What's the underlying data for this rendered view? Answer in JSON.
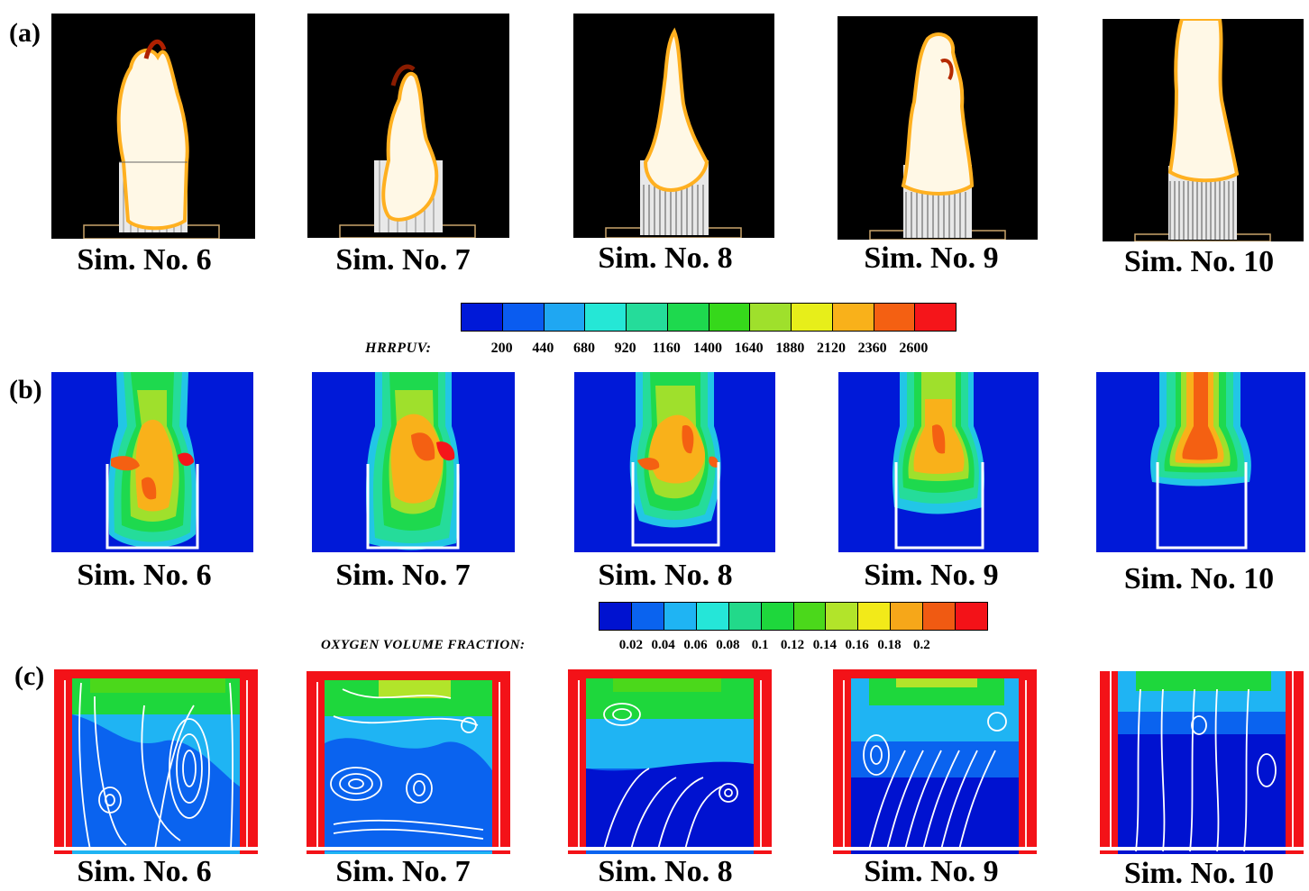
{
  "panels": {
    "a": {
      "letter": "(a)"
    },
    "b": {
      "letter": "(b)"
    },
    "c": {
      "letter": "(c)"
    }
  },
  "simulations": [
    "Sim. No. 6",
    "Sim. No. 7",
    "Sim. No. 8",
    "Sim. No. 9",
    "Sim. No. 10"
  ],
  "hrr_colorbar": {
    "title": "HRRPUV:",
    "ticks": [
      "200",
      "440",
      "680",
      "920",
      "1160",
      "1400",
      "1640",
      "1880",
      "2120",
      "2360",
      "2600"
    ],
    "colors": [
      "#0019d8",
      "#0a5cf0",
      "#1fa7f2",
      "#25e7d6",
      "#25dc9a",
      "#1ed94e",
      "#36d81b",
      "#9fe02c",
      "#e7ee1a",
      "#f9b11a",
      "#f46012",
      "#f5151a"
    ]
  },
  "o2_colorbar": {
    "title": "OXYGEN VOLUME FRACTION:",
    "ticks": [
      "0.02",
      "0.04",
      "0.06",
      "0.08",
      "0.1",
      "0.12",
      "0.14",
      "0.16",
      "0.18",
      "0.2"
    ],
    "colors": [
      "#0012d0",
      "#0a63ef",
      "#1fb4f3",
      "#25e6d8",
      "#22d98a",
      "#1ed73c",
      "#4bd81b",
      "#b2e42a",
      "#f2ea19",
      "#f6a719",
      "#f05a12",
      "#f31218"
    ]
  }
}
